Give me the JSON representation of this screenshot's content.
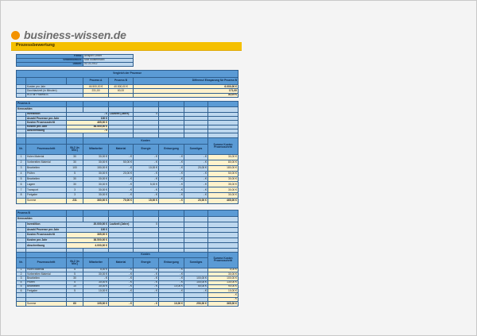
{
  "header": {
    "logo_text": "business-wissen.de",
    "section_title": "Prozessbewertung"
  },
  "colors": {
    "header_blue": "#5b9bd5",
    "cell_blue": "#bdd7ee",
    "highlight_cream": "#fff2cc",
    "bar_yellow": "#f5c000",
    "logo_orange": "#f39200"
  },
  "info": [
    {
      "label": "Firma:",
      "value": "Beispiel GmbH"
    },
    {
      "label": "Verantwortlich:",
      "value": "Max Mustermann"
    },
    {
      "label": "Datum:",
      "value": "01.01.2012"
    }
  ],
  "comparison": {
    "title": "Vergleich der Prozesse",
    "col_a": "Prozess A",
    "col_b": "Prozess B",
    "col_diff": "Differenz/ Einsparung für Prozess B",
    "rows": [
      {
        "label": "Kosten pro Jahr",
        "a": "46.500,00 €",
        "b": "40.500,00 €",
        "diff": "6.000,00 €"
      },
      {
        "label": "Durchlaufzeit (in Minuten)",
        "a": "231,00",
        "b": "60,00",
        "diff": "171,00"
      },
      {
        "label": "ROI für Prozess B",
        "a": "",
        "b": "",
        "diff": "30,00%"
      }
    ]
  },
  "columns": {
    "nr": "Nr.",
    "step": "Prozessschritt",
    "blz": "BLZ (in Min.)",
    "kosten": "Kosten",
    "mitarbeiter": "Mitarbeiter",
    "material": "Material",
    "energie": "Energie",
    "entsorgung": "Entsorgung",
    "sonstiges": "Sonstiges",
    "summe": "Summe Kosten Prozessschritt"
  },
  "processes": [
    {
      "title": "Prozess A",
      "kennzahlen_label": "Kennzahlen",
      "laufzeit_label": "Laufzeit (Jahre)",
      "laufzeit": "5",
      "kpis": [
        {
          "label": "Investition",
          "value": "- €"
        },
        {
          "label": "Anzahl Prozesse pro Jahr",
          "value": "100 €"
        },
        {
          "label": "Kosten Prozessschritt",
          "value": "465,00 €"
        },
        {
          "label": "Kosten pro Jahr",
          "value": "46.500,00 €"
        },
        {
          "label": "Abschreibung",
          "value": "- €"
        }
      ],
      "rows": [
        {
          "nr": "1",
          "step": "Holen Material",
          "blz": "30",
          "mitarbeiter": "30,00 €",
          "material": "- €",
          "energie": "- €",
          "entsorgung": "- €",
          "sonstiges": "- €",
          "summe": "30,00 €"
        },
        {
          "nr": "2",
          "step": "Vorbereiten Material",
          "blz": "30",
          "mitarbeiter": "30,00 €",
          "material": "50,00 €",
          "energie": "- €",
          "entsorgung": "- €",
          "sonstiges": "- €",
          "summe": "80,00 €"
        },
        {
          "nr": "3",
          "step": "Bearbeiten",
          "blz": "100",
          "mitarbeiter": "150,00 €",
          "material": "- €",
          "energie": "10,00 €",
          "entsorgung": "- €",
          "sonstiges": "20,00 €",
          "summe": "180,00 €"
        },
        {
          "nr": "4",
          "step": "Prüfen",
          "blz": "5",
          "mitarbeiter": "30,00 €",
          "material": "20,00 €",
          "energie": "- €",
          "entsorgung": "- €",
          "sonstiges": "- €",
          "summe": "50,00 €"
        },
        {
          "nr": "5",
          "step": "Bearbeiten",
          "blz": "30",
          "mitarbeiter": "30,00 €",
          "material": "- €",
          "energie": "- €",
          "entsorgung": "- €",
          "sonstiges": "- €",
          "summe": "30,00 €"
        },
        {
          "nr": "6",
          "step": "Lagern",
          "blz": "30",
          "mitarbeiter": "30,00 €",
          "material": "- €",
          "energie": "5,00 €",
          "entsorgung": "- €",
          "sonstiges": "- €",
          "summe": "35,00 €"
        },
        {
          "nr": "7",
          "step": "Transport",
          "blz": "3",
          "mitarbeiter": "30,00 €",
          "material": "- €",
          "energie": "- €",
          "entsorgung": "- €",
          "sonstiges": "- €",
          "summe": "30,00 €"
        },
        {
          "nr": "8",
          "step": "Freigabe",
          "blz": "3",
          "mitarbeiter": "30,00 €",
          "material": "- €",
          "energie": "- €",
          "entsorgung": "- €",
          "sonstiges": "- €",
          "summe": "30,00 €"
        }
      ],
      "total": {
        "label": "Summe",
        "blz": "231",
        "mitarbeiter": "360,00 €",
        "material": "70,00 €",
        "energie": "15,00 €",
        "entsorgung": "- €",
        "sonstiges": "20,00 €",
        "summe": "465,00 €"
      }
    },
    {
      "title": "Prozess B",
      "kennzahlen_label": "Kennzahlen",
      "laufzeit_label": "Laufzeit (Jahre)",
      "laufzeit": "5",
      "kpis": [
        {
          "label": "Investition",
          "value": "20.000,00 €"
        },
        {
          "label": "Anzahl Prozesse pro Jahr",
          "value": "100 €"
        },
        {
          "label": "Kosten Prozessschritt",
          "value": "365,00 €"
        },
        {
          "label": "Kosten pro Jahr",
          "value": "36.500,00 €"
        },
        {
          "label": "Abschreibung",
          "value": "4.000,00 €"
        }
      ],
      "rows": [
        {
          "nr": "1",
          "step": "Holen Material",
          "blz": "5",
          "mitarbeiter": "5,00 €",
          "material": "- €",
          "energie": "- €",
          "entsorgung": "- €",
          "sonstiges": "",
          "summe": "5,00 €"
        },
        {
          "nr": "2",
          "step": "Vorbereiten Material",
          "blz": "5",
          "mitarbeiter": "30,00 €",
          "material": "- €",
          "energie": "- €",
          "entsorgung": "- €",
          "sonstiges": "",
          "summe": "30,00 €"
        },
        {
          "nr": "3",
          "step": "Bearbeiten",
          "blz": "30",
          "mitarbeiter": "- €",
          "material": "- €",
          "energie": "- €",
          "entsorgung": "- €",
          "sonstiges": "100,00 €",
          "summe": "100,00 €"
        },
        {
          "nr": "4",
          "step": "Prüfen",
          "blz": "5",
          "mitarbeiter": "30,00 €",
          "material": "- €",
          "energie": "- €",
          "entsorgung": "- €",
          "sonstiges": "100,00 €",
          "summe": "130,00 €"
        },
        {
          "nr": "5",
          "step": "Bearbeiten",
          "blz": "10",
          "mitarbeiter": "30,00 €",
          "material": "- €",
          "energie": "- €",
          "entsorgung": "10,00 €",
          "sonstiges": "50,00 €",
          "summe": "90,00 €"
        },
        {
          "nr": "6",
          "step": "Freigabe",
          "blz": "5",
          "mitarbeiter": "10,00 €",
          "material": "- €",
          "energie": "- €",
          "entsorgung": "- €",
          "sonstiges": "- €",
          "summe": "10,00 €"
        },
        {
          "nr": "",
          "step": "",
          "blz": "",
          "mitarbeiter": "",
          "material": "",
          "energie": "",
          "entsorgung": "",
          "sonstiges": "",
          "summe": "- €"
        },
        {
          "nr": "",
          "step": "",
          "blz": "",
          "mitarbeiter": "",
          "material": "",
          "energie": "",
          "entsorgung": "",
          "sonstiges": "",
          "summe": "- €"
        }
      ],
      "total": {
        "label": "Summe",
        "blz": "60",
        "mitarbeiter": "105,00 €",
        "material": "- €",
        "energie": "- €",
        "entsorgung": "10,00 €",
        "sonstiges": "250,00 €",
        "summe": "365,00 €"
      }
    }
  ]
}
